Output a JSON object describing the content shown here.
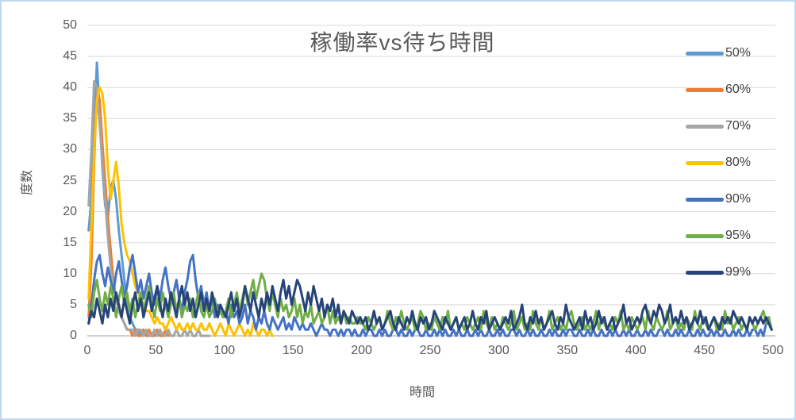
{
  "window": {
    "background": "#FFFFFF",
    "frame_border_color": "#BDD7EE"
  },
  "chart_data": {
    "type": "line",
    "title": "稼働率vs待ち時間",
    "xlabel": "時間",
    "ylabel": "度数",
    "xlim": [
      0,
      500
    ],
    "ylim": [
      0,
      50
    ],
    "x_ticks": [
      0,
      50,
      100,
      150,
      200,
      250,
      300,
      350,
      400,
      450,
      500
    ],
    "y_ticks": [
      0,
      5,
      10,
      15,
      20,
      25,
      30,
      35,
      40,
      45,
      50
    ],
    "grid": "horizontal",
    "gridline_color": "#D9D9D9",
    "axis_line_color": "#BFBFBF",
    "text_color": "#595959",
    "legend_position": "right",
    "series": [
      {
        "name": "50%",
        "color": "#5B9BD5",
        "x_start": 1,
        "x_step": 2,
        "values": [
          17,
          22,
          34,
          44,
          36,
          27,
          21,
          19,
          24,
          25,
          22,
          17,
          13,
          9,
          5,
          3,
          2,
          1,
          1,
          0,
          1,
          0,
          0
        ]
      },
      {
        "name": "60%",
        "color": "#ED7D31",
        "x_start": 1,
        "x_step": 2,
        "values": [
          3,
          12,
          28,
          40,
          38,
          31,
          25,
          19,
          14,
          9,
          6,
          4,
          3,
          2,
          1,
          1,
          0,
          1,
          0,
          0,
          1,
          0,
          1,
          0,
          0,
          1,
          0,
          0,
          1,
          0
        ]
      },
      {
        "name": "70%",
        "color": "#A5A5A5",
        "x_start": 1,
        "x_step": 2,
        "values": [
          21,
          30,
          41,
          40,
          34,
          28,
          22,
          16,
          11,
          8,
          6,
          4,
          3,
          2,
          1,
          1,
          1,
          0,
          1,
          1,
          0,
          1,
          0,
          0,
          1,
          0,
          1,
          0,
          0,
          1,
          0,
          0,
          1,
          0,
          0,
          1,
          0,
          1,
          0,
          0,
          1,
          0,
          0,
          0,
          0
        ]
      },
      {
        "name": "80%",
        "color": "#FFC000",
        "x_start": 1,
        "x_step": 2,
        "values": [
          6,
          18,
          30,
          38,
          40,
          39,
          35,
          27,
          22,
          25,
          28,
          24,
          18,
          15,
          13,
          12,
          10,
          8,
          7,
          6,
          5,
          4,
          4,
          3,
          2,
          3,
          2,
          2,
          1,
          2,
          3,
          2,
          1,
          2,
          1,
          1,
          2,
          1,
          2,
          1,
          1,
          2,
          1,
          1,
          2,
          1,
          0,
          1,
          2,
          1,
          0,
          2,
          1,
          0,
          1,
          2,
          1,
          0,
          1,
          0,
          2,
          1,
          0,
          1,
          1,
          0,
          1,
          0
        ]
      },
      {
        "name": "90%",
        "color": "#4472C4",
        "x_start": 1,
        "x_step": 2,
        "values": [
          2,
          5,
          9,
          12,
          13,
          10,
          8,
          11,
          9,
          7,
          10,
          12,
          9,
          6,
          8,
          11,
          13,
          10,
          7,
          9,
          6,
          8,
          10,
          7,
          5,
          8,
          6,
          9,
          11,
          8,
          6,
          7,
          9,
          6,
          4,
          7,
          9,
          12,
          13,
          9,
          6,
          8,
          5,
          7,
          4,
          6,
          3,
          5,
          4,
          3,
          4,
          2,
          5,
          3,
          4,
          2,
          3,
          5,
          2,
          4,
          3,
          1,
          3,
          2,
          4,
          2,
          1,
          3,
          2,
          1,
          2,
          3,
          1,
          2,
          1,
          3,
          2,
          1,
          2,
          1,
          1,
          2,
          1,
          0,
          1,
          2,
          1,
          1,
          0,
          1,
          1,
          0,
          1,
          0,
          1,
          1,
          0,
          1,
          0,
          0,
          1,
          0,
          1,
          1,
          0,
          0,
          1,
          0,
          1,
          0,
          0,
          1,
          1,
          0,
          1,
          0,
          0,
          1,
          0,
          1,
          1,
          0,
          0,
          1,
          0,
          0,
          1,
          0,
          1,
          0,
          1,
          0,
          0,
          1,
          0,
          1,
          0,
          0,
          1,
          0,
          0,
          1,
          0,
          1,
          0,
          0,
          1,
          0,
          0,
          1,
          0,
          1,
          0,
          0,
          1,
          1,
          0,
          1,
          0,
          0,
          1,
          0,
          1,
          0,
          0,
          1,
          0,
          0,
          1,
          0,
          1,
          0,
          0,
          1,
          0,
          1,
          1,
          0,
          0,
          1,
          0,
          0,
          1,
          0,
          1,
          0,
          0,
          1,
          0,
          0,
          1,
          0,
          1,
          0,
          0,
          1,
          0,
          1,
          0,
          0,
          1,
          0,
          0,
          1,
          0,
          1,
          0,
          0,
          1,
          1,
          0,
          1,
          0,
          0,
          1,
          0,
          1,
          0,
          0,
          1,
          0,
          0,
          1,
          0,
          1,
          0,
          0,
          1,
          0,
          1,
          0,
          0,
          1,
          0,
          0,
          1,
          0,
          1,
          0,
          0,
          1,
          0,
          1,
          1,
          0,
          1,
          0,
          2,
          2,
          1
        ]
      },
      {
        "name": "95%",
        "color": "#70AD47",
        "x_start": 1,
        "x_step": 2,
        "values": [
          5,
          3,
          7,
          9,
          6,
          4,
          7,
          5,
          8,
          6,
          3,
          6,
          8,
          5,
          7,
          4,
          6,
          3,
          5,
          7,
          4,
          6,
          8,
          5,
          3,
          6,
          4,
          7,
          5,
          3,
          5,
          7,
          4,
          6,
          3,
          5,
          4,
          6,
          3,
          5,
          7,
          4,
          3,
          5,
          3,
          4,
          6,
          3,
          4,
          3,
          4,
          6,
          3,
          5,
          7,
          4,
          6,
          8,
          5,
          7,
          9,
          6,
          8,
          10,
          9,
          6,
          4,
          7,
          5,
          3,
          6,
          4,
          5,
          3,
          4,
          6,
          3,
          5,
          2,
          4,
          3,
          5,
          2,
          3,
          4,
          2,
          3,
          5,
          2,
          4,
          2,
          3,
          2,
          4,
          2,
          3,
          2,
          2,
          3,
          2,
          2,
          1,
          3,
          2,
          1,
          2,
          3,
          1,
          2,
          4,
          2,
          1,
          3,
          2,
          4,
          2,
          1,
          2,
          3,
          1,
          2,
          4,
          3,
          1,
          2,
          1,
          3,
          2,
          1,
          3,
          2,
          4,
          1,
          2,
          3,
          1,
          2,
          1,
          3,
          2,
          1,
          2,
          3,
          1,
          4,
          2,
          1,
          3,
          1,
          2,
          1,
          3,
          2,
          1,
          2,
          4,
          1,
          2,
          3,
          1,
          2,
          1,
          4,
          2,
          1,
          3,
          1,
          2,
          4,
          1,
          2,
          3,
          1,
          2,
          1,
          3,
          4,
          2,
          1,
          2,
          3,
          1,
          2,
          1,
          2,
          4,
          1,
          3,
          2,
          1,
          2,
          1,
          3,
          2,
          4,
          1,
          2,
          1,
          3,
          2,
          1,
          2,
          3,
          1,
          4,
          2,
          1,
          3,
          2,
          1,
          2,
          4,
          1,
          2,
          3,
          1,
          2,
          1,
          3,
          2,
          1,
          4,
          2,
          1,
          3,
          2,
          1,
          2,
          3,
          1,
          2,
          1,
          4,
          2,
          3,
          1,
          2,
          3,
          1,
          2,
          1,
          3,
          2,
          1,
          2,
          3,
          4,
          2,
          3,
          1
        ]
      },
      {
        "name": "99%",
        "color": "#264478",
        "x_start": 1,
        "x_step": 2,
        "values": [
          2,
          4,
          3,
          6,
          4,
          2,
          5,
          3,
          6,
          4,
          7,
          5,
          3,
          6,
          4,
          2,
          5,
          7,
          4,
          6,
          3,
          5,
          7,
          4,
          6,
          8,
          5,
          3,
          6,
          4,
          7,
          5,
          3,
          6,
          8,
          5,
          7,
          4,
          6,
          3,
          5,
          7,
          4,
          6,
          4,
          7,
          5,
          3,
          5,
          4,
          3,
          5,
          7,
          4,
          6,
          3,
          5,
          8,
          6,
          4,
          7,
          5,
          3,
          6,
          4,
          7,
          5,
          8,
          6,
          4,
          7,
          9,
          6,
          8,
          5,
          7,
          9,
          8,
          6,
          4,
          7,
          5,
          8,
          6,
          4,
          6,
          3,
          5,
          4,
          6,
          3,
          5,
          2,
          4,
          3,
          2,
          4,
          3,
          2,
          3,
          2,
          3,
          1,
          2,
          4,
          2,
          3,
          1,
          2,
          3,
          4,
          2,
          1,
          3,
          2,
          1,
          3,
          2,
          4,
          2,
          1,
          3,
          2,
          3,
          1,
          2,
          4,
          3,
          2,
          1,
          3,
          2,
          1,
          2,
          3,
          1,
          2,
          3,
          1,
          2,
          4,
          2,
          1,
          3,
          2,
          4,
          1,
          2,
          3,
          2,
          1,
          2,
          3,
          2,
          4,
          1,
          2,
          3,
          5,
          2,
          1,
          3,
          2,
          4,
          2,
          3,
          1,
          2,
          3,
          4,
          2,
          1,
          3,
          2,
          5,
          3,
          2,
          1,
          2,
          3,
          1,
          4,
          2,
          3,
          1,
          2,
          4,
          2,
          3,
          1,
          2,
          3,
          1,
          2,
          3,
          5,
          2,
          3,
          1,
          2,
          3,
          2,
          4,
          5,
          3,
          2,
          4,
          3,
          5,
          4,
          2,
          3,
          5,
          2,
          3,
          2,
          4,
          2,
          3,
          1,
          2,
          3,
          2,
          4,
          2,
          3,
          1,
          2,
          3,
          2,
          1,
          3,
          2,
          3,
          2,
          4,
          3,
          2,
          3,
          2,
          1,
          3,
          2,
          3,
          2,
          3,
          2,
          3,
          2,
          1
        ]
      }
    ]
  }
}
